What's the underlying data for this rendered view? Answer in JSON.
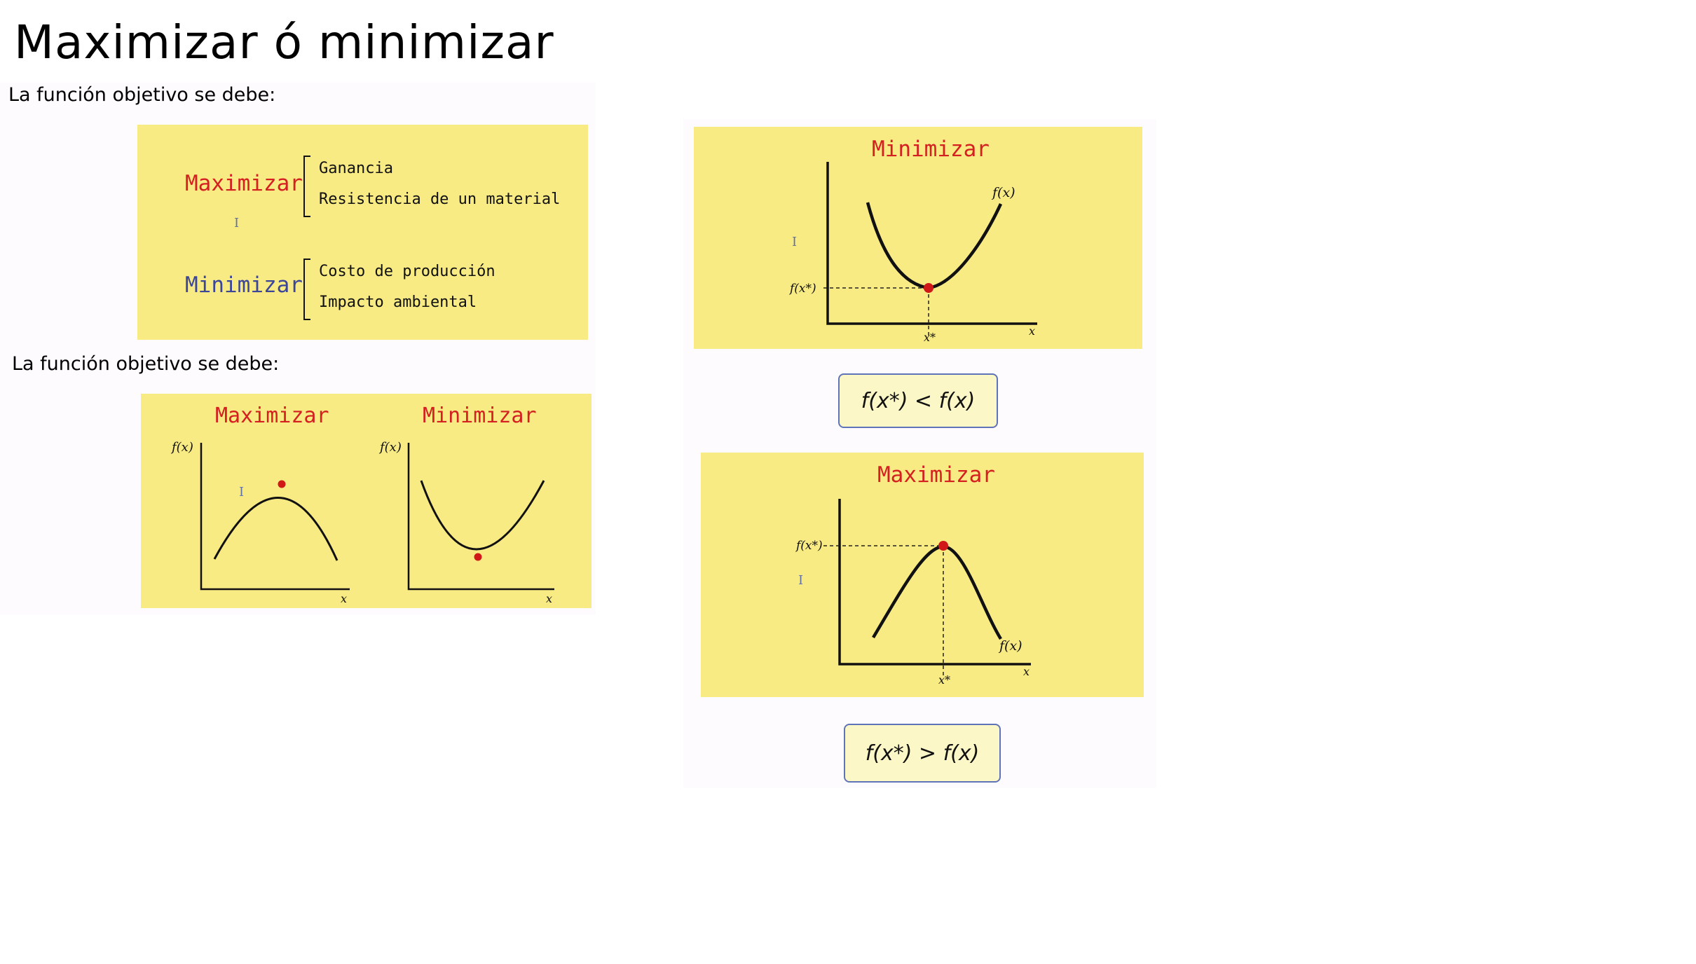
{
  "title": "Maximizar ó minimizar",
  "intro_top": "La función objetivo se debe:",
  "intro_bottom": "La función objetivo se debe:",
  "objectives_box": {
    "maximize": {
      "label": "Maximizar",
      "items": [
        "Ganancia",
        "Resistencia de un material"
      ]
    },
    "minimize": {
      "label": "Minimizar",
      "items": [
        "Costo de producción",
        "Impacto ambiental"
      ]
    }
  },
  "small_graphs": {
    "max_title": "Maximizar",
    "min_title": "Minimizar",
    "y_label": "f(x)",
    "x_label": "x"
  },
  "min_graph": {
    "title": "Minimizar",
    "curve_label": "f(x)",
    "opt_y_label": "f(x*)",
    "opt_x_label": "x*",
    "x_label": "x",
    "condition": "f(x*) < f(x)"
  },
  "max_graph": {
    "title": "Maximizar",
    "curve_label": "f(x)",
    "opt_y_label": "f(x*)",
    "opt_x_label": "x*",
    "x_label": "x",
    "condition": "f(x*) > f(x)"
  },
  "colors": {
    "panel_yellow": "#f9eb84",
    "max_red": "#d42020",
    "min_blue": "#3c4699",
    "point_red": "#d01818",
    "formula_bg": "#fcf7c6",
    "formula_border": "#5f74b8"
  },
  "cursor_glyph": "I"
}
